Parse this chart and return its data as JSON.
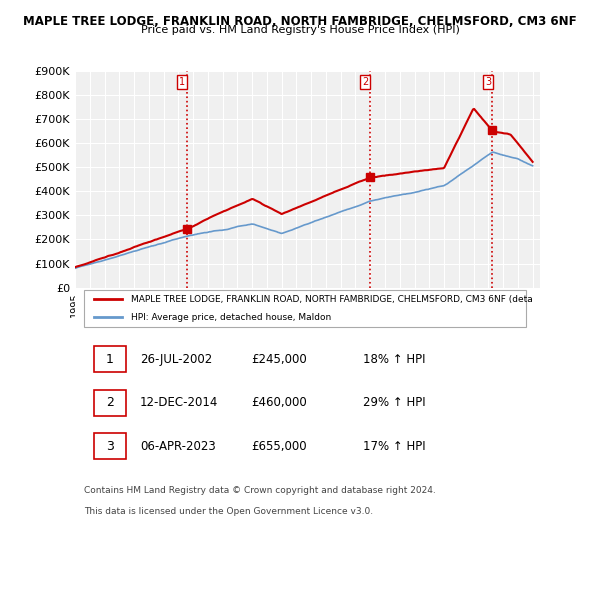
{
  "title1": "MAPLE TREE LODGE, FRANKLIN ROAD, NORTH FAMBRIDGE, CHELMSFORD, CM3 6NF",
  "title2": "Price paid vs. HM Land Registry's House Price Index (HPI)",
  "ylabel": "",
  "ylim": [
    0,
    900000
  ],
  "yticks": [
    0,
    100000,
    200000,
    300000,
    400000,
    500000,
    600000,
    700000,
    800000,
    900000
  ],
  "ytick_labels": [
    "£0",
    "£100K",
    "£200K",
    "£300K",
    "£400K",
    "£500K",
    "£600K",
    "£700K",
    "£800K",
    "£900K"
  ],
  "x_start_year": 1995,
  "x_end_year": 2026,
  "background_color": "#ffffff",
  "plot_bg_color": "#f0f0f0",
  "grid_color": "#ffffff",
  "sale_dates": [
    "2002-07-26",
    "2014-12-12",
    "2023-04-06"
  ],
  "sale_prices": [
    245000,
    460000,
    655000
  ],
  "sale_labels": [
    "1",
    "2",
    "3"
  ],
  "sale_pct": [
    "18%",
    "29%",
    "17%"
  ],
  "sale_date_labels": [
    "26-JUL-2002",
    "12-DEC-2014",
    "06-APR-2023"
  ],
  "vline_color": "#cc0000",
  "vline_style": ":",
  "property_line_color": "#cc0000",
  "hpi_line_color": "#6699cc",
  "legend_label_property": "MAPLE TREE LODGE, FRANKLIN ROAD, NORTH FAMBRIDGE, CHELMSFORD, CM3 6NF (deta",
  "legend_label_hpi": "HPI: Average price, detached house, Maldon",
  "footer1": "Contains HM Land Registry data © Crown copyright and database right 2024.",
  "footer2": "This data is licensed under the Open Government Licence v3.0."
}
